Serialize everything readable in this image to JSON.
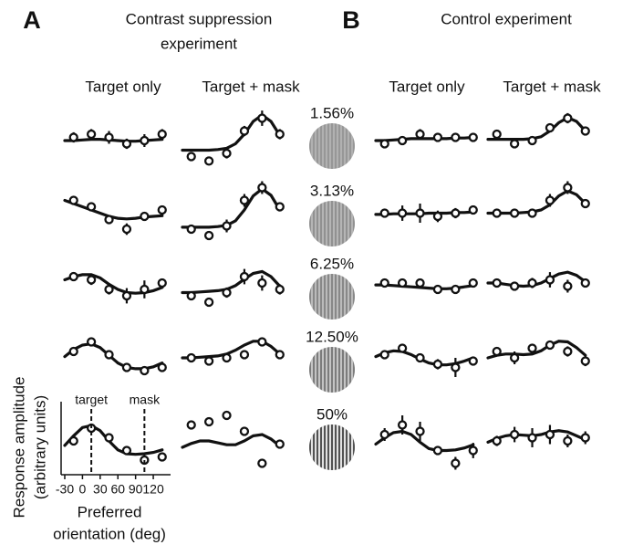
{
  "chart_data": {
    "type": "tuning-grid",
    "x": [
      -15,
      15,
      45,
      75,
      105,
      135
    ],
    "fit_x": [
      -30,
      -15,
      0,
      15,
      30,
      45,
      60,
      75,
      90,
      105,
      120,
      135
    ],
    "xlim": [
      -30,
      140
    ],
    "ylim": [
      0,
      10
    ],
    "xticks": [
      -30,
      0,
      30,
      60,
      90,
      120
    ],
    "x_label": [
      "Preferred",
      "orientation (deg)"
    ],
    "y_label": [
      "Response amplitude",
      "(arbitrary units)"
    ],
    "annotations": [
      {
        "text": "target",
        "x": 15
      },
      {
        "text": "mask",
        "x": 105
      }
    ],
    "contrasts": [
      {
        "value": 1.56,
        "label": "1.56%"
      },
      {
        "value": 3.13,
        "label": "3.13%"
      },
      {
        "value": 6.25,
        "label": "6.25%"
      },
      {
        "value": 12.5,
        "label": "12.50%"
      },
      {
        "value": 50,
        "label": "50%"
      }
    ],
    "panels": [
      {
        "letter": "A",
        "title": [
          "Contrast suppression",
          "experiment"
        ],
        "columns": [
          "Target only",
          "Target + mask"
        ],
        "rows": [
          [
            {
              "points": {
                "values": [
                  4.5,
                  5,
                  4.5,
                  3.5,
                  4,
                  5
                ],
                "errors": [
                  0.8,
                  0.8,
                  1,
                  0.8,
                  1,
                  0.8
                ]
              },
              "fit": [
                4,
                4,
                4.1,
                4.2,
                4.2,
                4.1,
                4,
                3.9,
                3.9,
                4,
                4.1,
                4.2
              ]
            },
            {
              "points": {
                "values": [
                  1.5,
                  0.8,
                  2,
                  5.5,
                  7.5,
                  5
                ],
                "errors": [
                  0.6,
                  0.6,
                  0.8,
                  0.8,
                  1.2,
                  0.8
                ]
              },
              "fit": [
                2.5,
                2.5,
                2.5,
                2.5,
                2.6,
                2.8,
                3.5,
                5,
                7,
                8,
                7,
                4.8
              ]
            }
          ],
          [
            {
              "points": {
                "values": [
                  6.5,
                  5.5,
                  3.5,
                  2,
                  4,
                  5
                ],
                "errors": [
                  0.6,
                  0.6,
                  0.6,
                  0.9,
                  0.6,
                  0.6
                ]
              },
              "fit": [
                6.5,
                6,
                5.5,
                5,
                4.5,
                4,
                3.7,
                3.6,
                3.7,
                3.9,
                4,
                4.1
              ]
            },
            {
              "points": {
                "values": [
                  2,
                  1,
                  2.5,
                  6.5,
                  8.5,
                  5.5
                ],
                "errors": [
                  0.6,
                  0.6,
                  1,
                  1,
                  1,
                  0.6
                ]
              },
              "fit": [
                2.3,
                2.3,
                2.3,
                2.3,
                2.4,
                2.6,
                3.3,
                5,
                7.2,
                8.3,
                7.3,
                5
              ]
            }
          ],
          [
            {
              "points": {
                "values": [
                  6,
                  5.5,
                  4,
                  3,
                  4,
                  5
                ],
                "errors": [
                  0.7,
                  0.8,
                  0.8,
                  1.2,
                  1.4,
                  0.7
                ]
              },
              "fit": [
                5.5,
                6,
                6.3,
                6.3,
                5.8,
                4.8,
                4,
                3.5,
                3.4,
                3.5,
                3.8,
                4.3
              ]
            },
            {
              "points": {
                "values": [
                  3,
                  2,
                  3.5,
                  6,
                  5,
                  4
                ],
                "errors": [
                  0.7,
                  0.7,
                  0.8,
                  1.2,
                  1.2,
                  0.8
                ]
              },
              "fit": [
                3.5,
                3.5,
                3.6,
                3.7,
                3.8,
                4,
                4.6,
                5.6,
                6.5,
                6.8,
                6,
                4.5
              ]
            }
          ],
          [
            {
              "points": {
                "values": [
                  6,
                  7.5,
                  5.5,
                  3.5,
                  3,
                  3.5
                ],
                "errors": [
                  0.6,
                  0.6,
                  0.6,
                  0.6,
                  0.6,
                  0.6
                ]
              },
              "fit": [
                5.2,
                6.3,
                7,
                7.2,
                6.6,
                5.4,
                4.2,
                3.5,
                3.3,
                3.3,
                3.6,
                4.2
              ]
            },
            {
              "points": {
                "values": [
                  5,
                  4.5,
                  5,
                  5.5,
                  7.5,
                  5.5
                ],
                "errors": [
                  0.6,
                  0.6,
                  0.6,
                  0.7,
                  0.7,
                  0.7
                ]
              },
              "fit": [
                5,
                5,
                5.1,
                5.2,
                5.3,
                5.6,
                6.2,
                7,
                7.6,
                7.6,
                6.8,
                5.6
              ]
            }
          ],
          [
            {
              "points": {
                "values": [
                  5,
                  7,
                  5.5,
                  3.5,
                  2,
                  2.5
                ],
                "errors": [
                  0.7,
                  0.7,
                  0.7,
                  0.6,
                  0.6,
                  0.6
                ]
              },
              "fit": [
                4.3,
                5.8,
                7.1,
                7.4,
                6.6,
                5,
                3.6,
                3,
                2.9,
                3,
                3.2,
                3.6
              ]
            },
            {
              "points": {
                "values": [
                  7.5,
                  8,
                  9,
                  6.5,
                  1.5,
                  4.5
                ],
                "errors": [
                  0.5,
                  0.5,
                  0.6,
                  0.6,
                  0.6,
                  0.6
                ]
              },
              "fit": [
                4,
                4.6,
                5,
                5,
                4.7,
                4.4,
                4.4,
                5,
                5.8,
                6,
                5.3,
                4.2
              ]
            }
          ]
        ]
      },
      {
        "letter": "B",
        "title": [
          "Control experiment"
        ],
        "columns": [
          "Target only",
          "Target + mask"
        ],
        "rows": [
          [
            {
              "points": {
                "values": [
                  3.5,
                  4,
                  5,
                  4.5,
                  4.5,
                  4.5
                ],
                "errors": [
                  0.7,
                  0.7,
                  0.8,
                  0.6,
                  0.6,
                  0.6
                ]
              },
              "fit": [
                4,
                4,
                4.1,
                4.2,
                4.3,
                4.3,
                4.3,
                4.3,
                4.3,
                4.4,
                4.4,
                4.5
              ]
            },
            {
              "points": {
                "values": [
                  5,
                  3.5,
                  4,
                  6,
                  7.5,
                  5.5
                ],
                "errors": [
                  0.6,
                  0.6,
                  0.6,
                  0.6,
                  0.8,
                  0.6
                ]
              },
              "fit": [
                4.2,
                4.2,
                4.2,
                4.2,
                4.2,
                4.3,
                4.6,
                5.5,
                6.8,
                7.6,
                7,
                5.5
              ]
            }
          ],
          [
            {
              "points": {
                "values": [
                  4.5,
                  4.5,
                  4.5,
                  4,
                  4.5,
                  5
                ],
                "errors": [
                  0.6,
                  1.2,
                  1.5,
                  0.9,
                  0.8,
                  0.6
                ]
              },
              "fit": [
                4.3,
                4.3,
                4.4,
                4.4,
                4.4,
                4.4,
                4.5,
                4.5,
                4.5,
                4.6,
                4.6,
                4.7
              ]
            },
            {
              "points": {
                "values": [
                  4.5,
                  4.5,
                  4.5,
                  6.5,
                  8.5,
                  6
                ],
                "errors": [
                  0.6,
                  0.6,
                  0.6,
                  1,
                  1,
                  0.6
                ]
              },
              "fit": [
                4.5,
                4.5,
                4.5,
                4.5,
                4.6,
                4.7,
                5,
                5.8,
                7.2,
                8,
                7.4,
                6
              ]
            }
          ],
          [
            {
              "points": {
                "values": [
                  5,
                  5,
                  5,
                  4,
                  4,
                  5
                ],
                "errors": [
                  0.6,
                  0.6,
                  0.6,
                  0.6,
                  0.6,
                  0.6
                ]
              },
              "fit": [
                4.7,
                4.7,
                4.6,
                4.5,
                4.4,
                4.3,
                4.2,
                4.1,
                4.1,
                4.2,
                4.4,
                4.6
              ]
            },
            {
              "points": {
                "values": [
                  5,
                  4.5,
                  5,
                  5.5,
                  4.5,
                  5
                ],
                "errors": [
                  0.7,
                  0.7,
                  0.8,
                  1.2,
                  1,
                  0.7
                ]
              },
              "fit": [
                5,
                5,
                4.8,
                4.6,
                4.5,
                4.6,
                5,
                5.7,
                6.4,
                6.7,
                6.2,
                5.2
              ]
            }
          ],
          [
            {
              "points": {
                "values": [
                  5.5,
                  6.5,
                  5,
                  4,
                  3.5,
                  4.5
                ],
                "errors": [
                  0.6,
                  0.6,
                  0.6,
                  0.8,
                  1.5,
                  0.6
                ]
              },
              "fit": [
                5.2,
                5.8,
                6.1,
                6,
                5.5,
                4.8,
                4.2,
                3.9,
                3.9,
                4.1,
                4.5,
                5
              ]
            },
            {
              "points": {
                "values": [
                  6,
                  5,
                  6.5,
                  7,
                  6,
                  4.5
                ],
                "errors": [
                  0.6,
                  1,
                  0.6,
                  0.6,
                  0.8,
                  0.8
                ]
              },
              "fit": [
                5,
                5.4,
                5.6,
                5.6,
                5.5,
                5.6,
                6.1,
                7,
                7.6,
                7.5,
                6.6,
                5.4
              ]
            }
          ],
          [
            {
              "points": {
                "values": [
                  6,
                  7.5,
                  6.5,
                  3.5,
                  1.5,
                  3.5
                ],
                "errors": [
                  1,
                  1.5,
                  1.5,
                  0.7,
                  1,
                  1.2
                ]
              },
              "fit": [
                4.5,
                5.5,
                6.3,
                6.5,
                6,
                4.8,
                3.8,
                3.5,
                3.5,
                3.6,
                3.9,
                4.4
              ]
            },
            {
              "points": {
                "values": [
                  5,
                  6,
                  5.5,
                  6,
                  5,
                  5.5
                ],
                "errors": [
                  0.8,
                  1.2,
                  1.5,
                  1.5,
                  1,
                  1
                ]
              },
              "fit": [
                4.8,
                5.4,
                5.8,
                6,
                5.9,
                5.8,
                6,
                6.4,
                6.6,
                6.4,
                5.8,
                5.2
              ]
            }
          ]
        ]
      }
    ]
  }
}
